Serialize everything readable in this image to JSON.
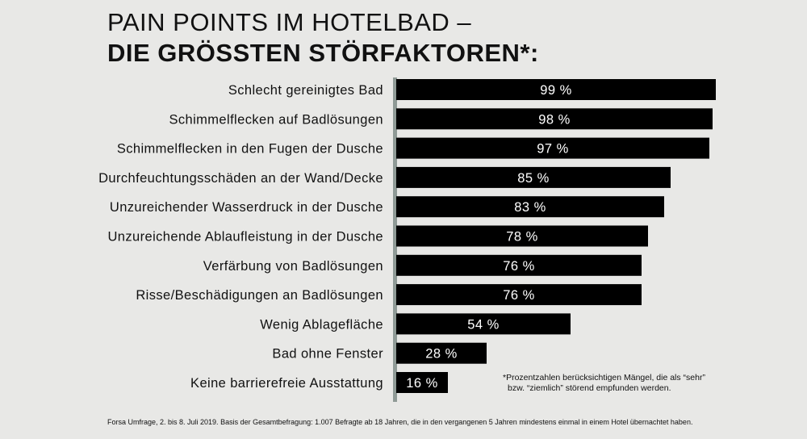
{
  "title": {
    "line1": "PAIN POINTS IM HOTELBAD –",
    "line2": "DIE GRÖSSTEN STÖRFAKTOREN*:"
  },
  "colors": {
    "background": "#e8e8e6",
    "bar": "#000000",
    "axis": "#8f9a96",
    "label": "#111111",
    "value_text": "#ffffff"
  },
  "chart_data": {
    "type": "bar",
    "orientation": "horizontal",
    "categories": [
      "Schlecht gereinigtes Bad",
      "Schimmelflecken auf Badlösungen",
      "Schimmelflecken in den Fugen der Dusche",
      "Durchfeuchtungsschäden an der Wand/Decke",
      "Unzureichender Wasserdruck in der Dusche",
      "Unzureichende Ablaufleistung in der Dusche",
      "Verfärbung von Badlösungen",
      "Risse/Beschädigungen an Badlösungen",
      "Wenig Ablagefläche",
      "Bad ohne Fenster",
      "Keine barrierefreie Ausstattung"
    ],
    "values": [
      99,
      98,
      97,
      85,
      83,
      78,
      76,
      76,
      54,
      28,
      16
    ],
    "value_labels": [
      "99 %",
      "98 %",
      "97 %",
      "85 %",
      "83 %",
      "78 %",
      "76 %",
      "76 %",
      "54 %",
      "28 %",
      "16 %"
    ],
    "xlim": [
      0,
      100
    ],
    "unit": "%",
    "grid": false,
    "legend": "none"
  },
  "footnote": {
    "line1": "*Prozentzahlen berücksichtigen Mängel, die als “sehr”",
    "line2": "bzw. “ziemlich” störend empfunden werden."
  },
  "source": "Forsa Umfrage, 2. bis 8. Juli 2019. Basis der Gesamtbefragung: 1.007 Befragte ab 18 Jahren, die in den vergangenen 5 Jahren mindestens einmal in einem Hotel übernachtet haben."
}
